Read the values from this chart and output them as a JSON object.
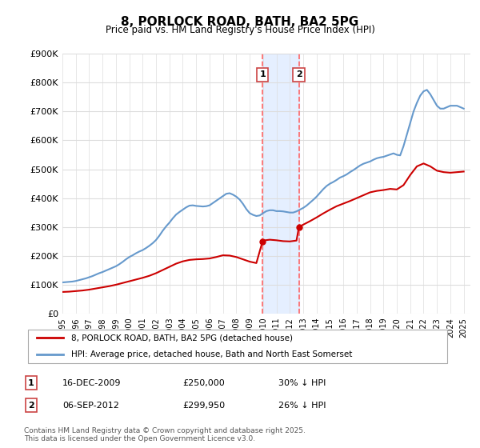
{
  "title": "8, PORLOCK ROAD, BATH, BA2 5PG",
  "subtitle": "Price paid vs. HM Land Registry's House Price Index (HPI)",
  "xlabel": "",
  "ylabel": "",
  "ylim": [
    0,
    900000
  ],
  "yticks": [
    0,
    100000,
    200000,
    300000,
    400000,
    500000,
    600000,
    700000,
    800000,
    900000
  ],
  "ytick_labels": [
    "£0",
    "£100K",
    "£200K",
    "£300K",
    "£400K",
    "£500K",
    "£600K",
    "£700K",
    "£800K",
    "£900K"
  ],
  "xlim_start": 1995.0,
  "xlim_end": 2025.5,
  "purchase1_date": "16-DEC-2009",
  "purchase1_price": "£250,000",
  "purchase1_hpi": "30% ↓ HPI",
  "purchase1_x": 2009.96,
  "purchase1_y": 250000,
  "purchase2_date": "06-SEP-2012",
  "purchase2_price": "£299,950",
  "purchase2_hpi": "26% ↓ HPI",
  "purchase2_x": 2012.68,
  "purchase2_y": 299950,
  "vline1_x": 2009.96,
  "vline2_x": 2012.68,
  "shade_color": "#cce0ff",
  "vline_color": "#ff6666",
  "red_line_color": "#cc0000",
  "blue_line_color": "#6699cc",
  "legend_label_red": "8, PORLOCK ROAD, BATH, BA2 5PG (detached house)",
  "legend_label_blue": "HPI: Average price, detached house, Bath and North East Somerset",
  "footnote": "Contains HM Land Registry data © Crown copyright and database right 2025.\nThis data is licensed under the Open Government Licence v3.0.",
  "table_row1": [
    "1",
    "16-DEC-2009",
    "£250,000",
    "30% ↓ HPI"
  ],
  "table_row2": [
    "2",
    "06-SEP-2012",
    "£299,950",
    "26% ↓ HPI"
  ],
  "hpi_x": [
    1995.0,
    1995.25,
    1995.5,
    1995.75,
    1996.0,
    1996.25,
    1996.5,
    1996.75,
    1997.0,
    1997.25,
    1997.5,
    1997.75,
    1998.0,
    1998.25,
    1998.5,
    1998.75,
    1999.0,
    1999.25,
    1999.5,
    1999.75,
    2000.0,
    2000.25,
    2000.5,
    2000.75,
    2001.0,
    2001.25,
    2001.5,
    2001.75,
    2002.0,
    2002.25,
    2002.5,
    2002.75,
    2003.0,
    2003.25,
    2003.5,
    2003.75,
    2004.0,
    2004.25,
    2004.5,
    2004.75,
    2005.0,
    2005.25,
    2005.5,
    2005.75,
    2006.0,
    2006.25,
    2006.5,
    2006.75,
    2007.0,
    2007.25,
    2007.5,
    2007.75,
    2008.0,
    2008.25,
    2008.5,
    2008.75,
    2009.0,
    2009.25,
    2009.5,
    2009.75,
    2010.0,
    2010.25,
    2010.5,
    2010.75,
    2011.0,
    2011.25,
    2011.5,
    2011.75,
    2012.0,
    2012.25,
    2012.5,
    2012.75,
    2013.0,
    2013.25,
    2013.5,
    2013.75,
    2014.0,
    2014.25,
    2014.5,
    2014.75,
    2015.0,
    2015.25,
    2015.5,
    2015.75,
    2016.0,
    2016.25,
    2016.5,
    2016.75,
    2017.0,
    2017.25,
    2017.5,
    2017.75,
    2018.0,
    2018.25,
    2018.5,
    2018.75,
    2019.0,
    2019.25,
    2019.5,
    2019.75,
    2020.0,
    2020.25,
    2020.5,
    2020.75,
    2021.0,
    2021.25,
    2021.5,
    2021.75,
    2022.0,
    2022.25,
    2022.5,
    2022.75,
    2023.0,
    2023.25,
    2023.5,
    2023.75,
    2024.0,
    2024.25,
    2024.5,
    2024.75,
    2025.0
  ],
  "hpi_y": [
    108000,
    109000,
    110000,
    111000,
    113000,
    116000,
    119000,
    122000,
    126000,
    130000,
    135000,
    140000,
    144000,
    149000,
    154000,
    159000,
    164000,
    171000,
    179000,
    188000,
    196000,
    202000,
    209000,
    215000,
    220000,
    227000,
    235000,
    244000,
    255000,
    270000,
    287000,
    302000,
    315000,
    330000,
    343000,
    352000,
    360000,
    368000,
    374000,
    375000,
    373000,
    372000,
    371000,
    372000,
    375000,
    383000,
    391000,
    399000,
    407000,
    415000,
    417000,
    412000,
    405000,
    395000,
    380000,
    362000,
    348000,
    342000,
    338000,
    340000,
    348000,
    355000,
    358000,
    358000,
    355000,
    355000,
    354000,
    352000,
    350000,
    350000,
    354000,
    360000,
    366000,
    374000,
    384000,
    394000,
    405000,
    418000,
    431000,
    442000,
    450000,
    456000,
    463000,
    471000,
    476000,
    482000,
    490000,
    497000,
    505000,
    513000,
    519000,
    523000,
    527000,
    533000,
    538000,
    541000,
    543000,
    547000,
    551000,
    555000,
    550000,
    548000,
    580000,
    620000,
    660000,
    700000,
    730000,
    755000,
    770000,
    775000,
    760000,
    740000,
    720000,
    710000,
    710000,
    715000,
    720000,
    720000,
    720000,
    715000,
    710000
  ],
  "price_x": [
    1995.0,
    1995.5,
    1996.0,
    1996.5,
    1997.0,
    1997.5,
    1998.0,
    1998.5,
    1999.0,
    1999.5,
    2000.0,
    2000.5,
    2001.0,
    2001.5,
    2002.0,
    2002.5,
    2003.0,
    2003.5,
    2004.0,
    2004.5,
    2005.0,
    2005.5,
    2006.0,
    2006.5,
    2007.0,
    2007.5,
    2008.0,
    2008.5,
    2009.0,
    2009.5,
    2009.96,
    2010.0,
    2010.5,
    2011.0,
    2011.5,
    2012.0,
    2012.5,
    2012.68,
    2013.0,
    2013.5,
    2014.0,
    2014.5,
    2015.0,
    2015.5,
    2016.0,
    2016.5,
    2017.0,
    2017.5,
    2018.0,
    2018.5,
    2019.0,
    2019.5,
    2020.0,
    2020.5,
    2021.0,
    2021.5,
    2022.0,
    2022.5,
    2023.0,
    2023.5,
    2024.0,
    2024.5,
    2025.0
  ],
  "price_y": [
    75000,
    76000,
    78000,
    80000,
    83000,
    87000,
    91000,
    95000,
    100000,
    106000,
    112000,
    118000,
    124000,
    131000,
    140000,
    151000,
    162000,
    173000,
    181000,
    186000,
    188000,
    189000,
    191000,
    196000,
    202000,
    201000,
    196000,
    188000,
    180000,
    175000,
    250000,
    253000,
    256000,
    254000,
    251000,
    250000,
    253000,
    299950,
    308000,
    320000,
    333000,
    347000,
    360000,
    372000,
    381000,
    390000,
    400000,
    410000,
    420000,
    425000,
    428000,
    432000,
    430000,
    445000,
    480000,
    510000,
    520000,
    510000,
    495000,
    490000,
    488000,
    490000,
    492000
  ]
}
